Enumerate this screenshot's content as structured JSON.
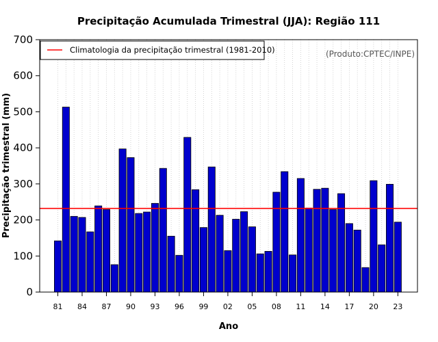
{
  "chart_data": {
    "type": "bar",
    "title": "Precipitação Acumulada Trimestral (JJA): Região 111",
    "xlabel": "Ano",
    "ylabel": "Precipitação trimestral (mm)",
    "credit": "(Produto:CPTEC/INPE)",
    "ylim": [
      0,
      700
    ],
    "yticks": [
      0,
      100,
      200,
      300,
      400,
      500,
      600,
      700
    ],
    "categories": [
      "81",
      "82",
      "83",
      "84",
      "85",
      "86",
      "87",
      "88",
      "89",
      "90",
      "91",
      "92",
      "93",
      "94",
      "95",
      "96",
      "97",
      "98",
      "99",
      "00",
      "01",
      "02",
      "03",
      "04",
      "05",
      "06",
      "07",
      "08",
      "09",
      "10",
      "11",
      "12",
      "13",
      "14",
      "15",
      "16",
      "17",
      "18",
      "19",
      "20",
      "21",
      "22",
      "23"
    ],
    "xtick_labels": [
      "81",
      "84",
      "87",
      "90",
      "93",
      "96",
      "99",
      "02",
      "05",
      "08",
      "11",
      "14",
      "17",
      "20",
      "23"
    ],
    "series": [
      {
        "name": "Precipitação trimestral",
        "color": "#0000cd",
        "values": [
          142,
          513,
          210,
          207,
          167,
          239,
          229,
          76,
          397,
          373,
          218,
          222,
          246,
          343,
          155,
          102,
          429,
          284,
          179,
          347,
          213,
          115,
          202,
          223,
          181,
          106,
          113,
          277,
          334,
          103,
          315,
          233,
          285,
          288,
          229,
          273,
          190,
          172,
          68,
          309,
          131,
          299,
          194
        ]
      }
    ],
    "reference_line": {
      "label": "Climatologia da precipitação trimestral (1981-2010)",
      "value": 232,
      "color": "#ff0000"
    },
    "grid": "vertical dotted",
    "legend_position": "top-left"
  }
}
